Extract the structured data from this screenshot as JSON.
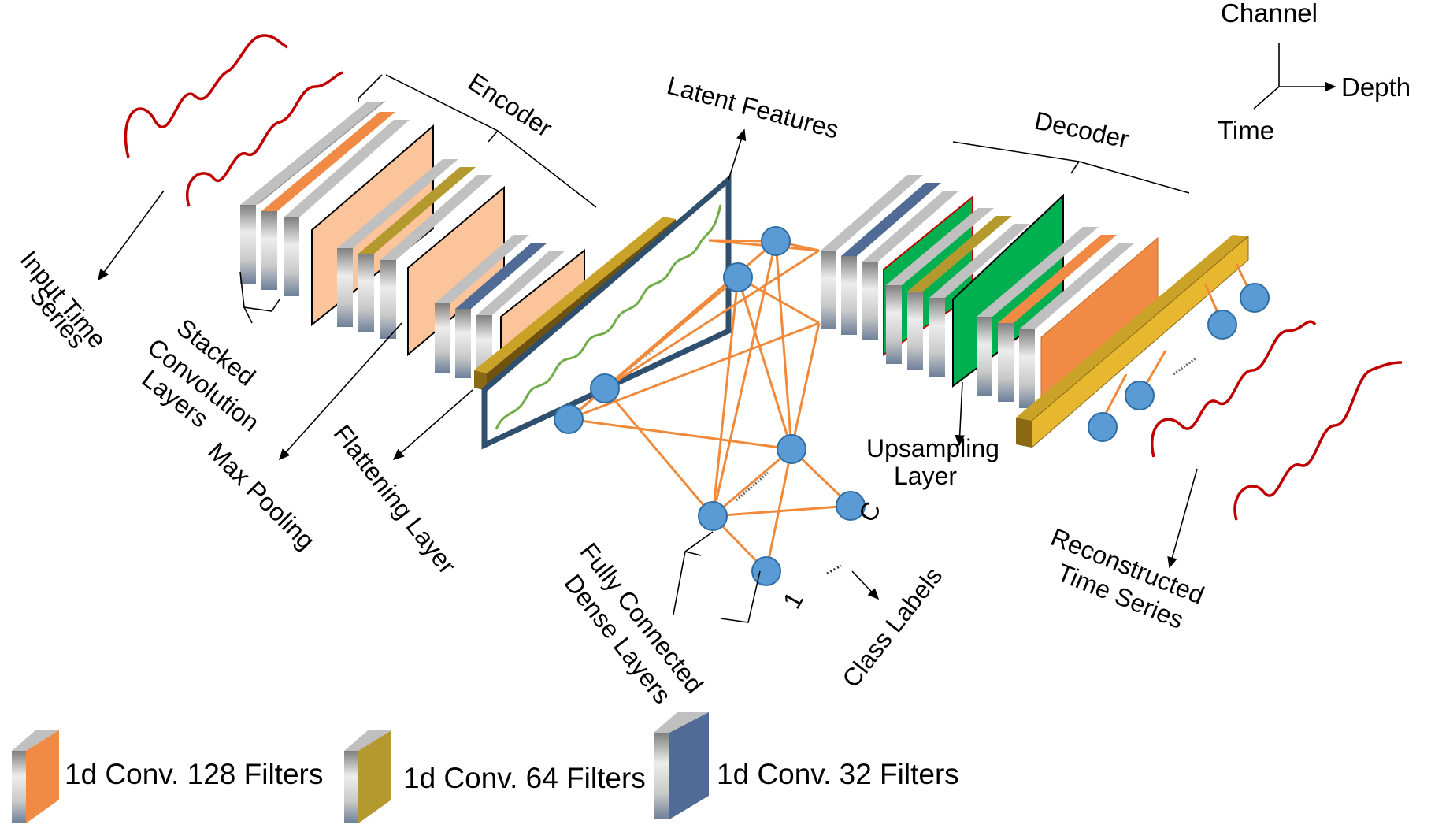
{
  "labels": {
    "encoder": "Encoder",
    "decoder": "Decoder",
    "latent_features": "Latent Features",
    "input_time_series_1": "Input Time",
    "input_time_series_2": "Series",
    "stacked_1": "Stacked",
    "stacked_2": "Convolution",
    "stacked_3": "Layers",
    "max_pooling": "Max Pooling",
    "flattening_layer": "Flattening Layer",
    "fully_connected_1": "Fully Connected",
    "fully_connected_2": "Dense Layers",
    "class_labels": "Class Labels",
    "class_c": "C",
    "class_1": "1",
    "upsampling_1": "Upsampling",
    "upsampling_2": "Layer",
    "reconstructed_1": "Reconstructed",
    "reconstructed_2": "Time Series"
  },
  "axes": {
    "channel": "Channel",
    "depth": "Depth",
    "time": "Time"
  },
  "legend": [
    {
      "label": "1d Conv. 128 Filters",
      "color": "#F08A45"
    },
    {
      "label": "1d Conv.  64 Filters",
      "color": "#B49A2E"
    },
    {
      "label": "1d Conv.  32 Filters",
      "color": "#4F6B96"
    }
  ],
  "colors": {
    "pooling_fill": "#FBC49A",
    "upsampling_fill": "#00B050",
    "dense_edges": "#F08A3A",
    "node_fill": "#5B9BD5",
    "signal_wave": "#C00000",
    "latent_wave": "#70AD47",
    "flatten_bar": "#8B6914",
    "decoder_bar": "#E8B730"
  }
}
